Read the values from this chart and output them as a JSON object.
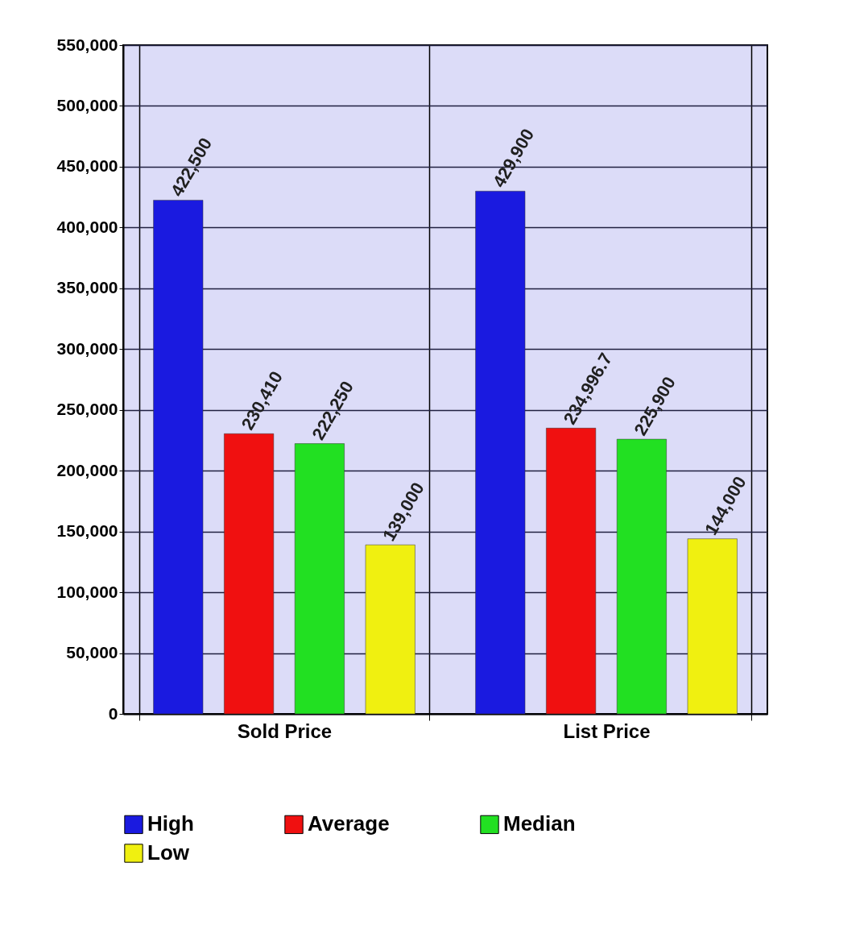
{
  "chart_data": {
    "type": "bar",
    "categories": [
      "Sold Price",
      "List Price"
    ],
    "series": [
      {
        "name": "High",
        "color": "#1a1ae0",
        "values": [
          422500,
          429900
        ],
        "value_labels": [
          "422,500",
          "429,900"
        ]
      },
      {
        "name": "Average",
        "color": "#f01010",
        "values": [
          230410,
          234996.7
        ],
        "value_labels": [
          "230,410",
          "234,996.7"
        ]
      },
      {
        "name": "Median",
        "color": "#22e022",
        "values": [
          222250,
          225900
        ],
        "value_labels": [
          "222,250",
          "225,900"
        ]
      },
      {
        "name": "Low",
        "color": "#f0f010",
        "values": [
          139000,
          144000
        ],
        "value_labels": [
          "139,000",
          "144,000"
        ]
      }
    ],
    "ylim": [
      0,
      550000
    ],
    "yticks": [
      0,
      {
        "value": 50000,
        "label": "50,000"
      },
      {
        "value": 100000,
        "label": "100,000"
      },
      {
        "value": 150000,
        "label": "150,000"
      },
      {
        "value": 200000,
        "label": "200,000"
      },
      {
        "value": 250000,
        "label": "250,000"
      },
      {
        "value": 300000,
        "label": "300,000"
      },
      {
        "value": 350000,
        "label": "350,000"
      },
      {
        "value": 400000,
        "label": "400,000"
      },
      {
        "value": 450000,
        "label": "450,000"
      },
      {
        "value": 500000,
        "label": "500,000"
      },
      {
        "value": 550000,
        "label": "550,000"
      }
    ],
    "grid": true,
    "legend": "bottom"
  }
}
